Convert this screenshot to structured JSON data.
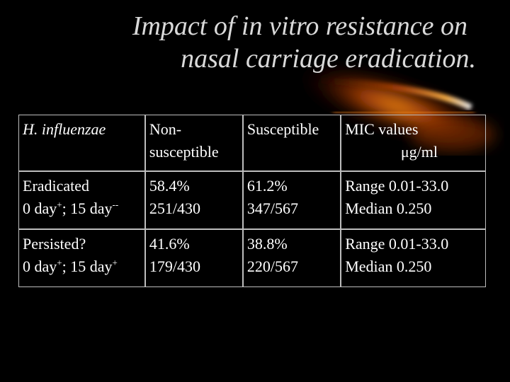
{
  "slide": {
    "title_line1": "Impact of in vitro resistance on",
    "title_line2": "nasal carriage eradication."
  },
  "table": {
    "header": {
      "organism": "H. influenzae",
      "nonsusceptible_line1": "Non-",
      "nonsusceptible_line2": "susceptible",
      "susceptible": "Susceptible",
      "mic_line1": "MIC values",
      "mic_unit": "μg/ml"
    },
    "rows": [
      {
        "outcome": "Eradicated",
        "days_prefix": "0 day",
        "days_sup1": "+",
        "days_middle": "; 15 day",
        "days_sup2": "--",
        "nonsus_pct": "58.4%",
        "nonsus_count": "251/430",
        "sus_pct": "61.2%",
        "sus_count": "347/567",
        "mic_range": "Range 0.01-33.0",
        "mic_median": "Median 0.250"
      },
      {
        "outcome": "Persisted?",
        "days_prefix": "0 day",
        "days_sup1": "+",
        "days_middle": "; 15 day",
        "days_sup2": "+",
        "nonsus_pct": "41.6%",
        "nonsus_count": "179/430",
        "sus_pct": "38.8%",
        "sus_count": "220/567",
        "mic_range": "Range 0.01-33.0",
        "mic_median": "Median 0.250"
      }
    ]
  }
}
